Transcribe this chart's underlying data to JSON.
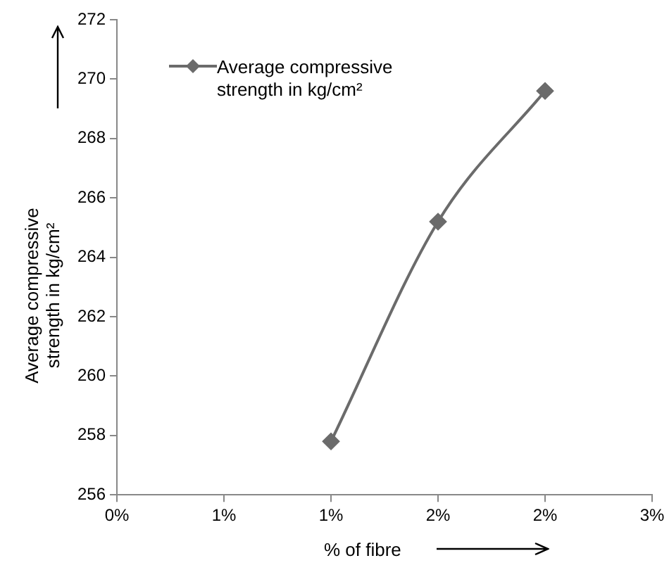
{
  "chart_data": {
    "type": "line",
    "xlabel": "% of fibre",
    "ylabel": "Average compressive strength in kg/cm²",
    "x": [
      1.0,
      1.5,
      2.0
    ],
    "series": [
      {
        "name": "Average compressive strength in kg/cm²",
        "color": "#6b6b6b",
        "values": [
          257.8,
          265.2,
          269.6
        ]
      }
    ],
    "xlim": [
      0,
      2.5
    ],
    "xticks": [
      {
        "value": 0,
        "label": "0%"
      },
      {
        "value": 0.5,
        "label": "1%"
      },
      {
        "value": 1.0,
        "label": "1%"
      },
      {
        "value": 1.5,
        "label": "2%"
      },
      {
        "value": 2.0,
        "label": "2%"
      },
      {
        "value": 2.5,
        "label": "3%"
      }
    ],
    "ylim": [
      256,
      272
    ],
    "yticks": [
      256,
      258,
      260,
      262,
      264,
      266,
      268,
      270,
      272
    ],
    "grid": false,
    "legend": "top left",
    "marker": "diamond",
    "line_style": "solid"
  }
}
